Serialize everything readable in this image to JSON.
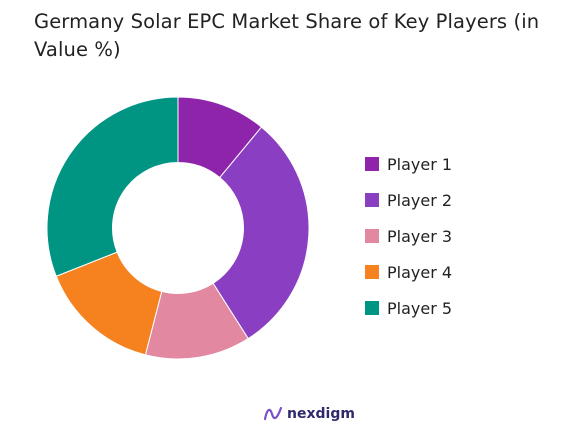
{
  "chart_data": {
    "type": "pie",
    "title": "Germany Solar EPC Market Share of Key Players (in Value %)",
    "categories": [
      "Player 1",
      "Player 2",
      "Player 3",
      "Player 4",
      "Player 5"
    ],
    "values": [
      11,
      30,
      13,
      15,
      31
    ],
    "colors": [
      "#8e24aa",
      "#8a3fc2",
      "#e288a1",
      "#f5821f",
      "#009483"
    ],
    "legend": "right",
    "start_angle_deg": 0,
    "direction": "clockwise",
    "inner_radius_fraction": 0.5
  },
  "brand": {
    "name": "nexdigm",
    "icon": "nexdigm-logo-icon",
    "color": "#2f2a6b"
  }
}
